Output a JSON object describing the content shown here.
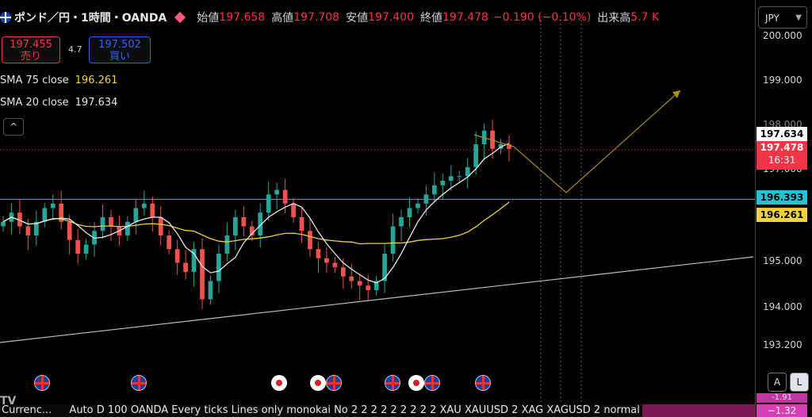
{
  "header": {
    "symbol": "ポンド／円・1時間・OANDA",
    "open_label": "始値",
    "open_value": "197.658",
    "high_label": "高値",
    "high_value": "197.708",
    "low_label": "安値",
    "low_value": "197.400",
    "close_label": "終値",
    "close_value": "197.478",
    "change": "−0.190 (−0.10%)",
    "volume_label": "出来高",
    "volume_value": "5.7 K"
  },
  "trade": {
    "sell_price": "197.455",
    "sell_label": "売り",
    "spread": "4.7",
    "buy_price": "197.502",
    "buy_label": "買い"
  },
  "indicators": {
    "sma75_label": "SMA 75 close",
    "sma75_value": "196.261",
    "sma20_label": "SMA 20 close",
    "sma20_value": "197.634",
    "collapse_glyph": "^"
  },
  "price_axis": {
    "currency": "JPY",
    "ticks": [
      "200.000",
      "199.000",
      "197.000",
      "195.000",
      "194.000",
      "193.200"
    ],
    "tick_198_partial": "198.000",
    "tag_sma20": "197.634",
    "tag_last": "197.478",
    "tag_countdown": "16:31",
    "tag_hline": "196.393",
    "tag_sma75": "196.261",
    "tag_bottom_partial": "-1.91",
    "tag_bottom": "−1.32"
  },
  "controls": {
    "auto_a": "A",
    "log_l": "L"
  },
  "bottom_bar": {
    "left": "Currenc...",
    "right": "Auto D 100 OANDA Every ticks Lines only monokai No 2 2 2 2 2 2 2 2 2 XAU XAUUSD 2 XAG XAGUSD 2 normal c"
  },
  "colors": {
    "up": "#26a69a",
    "down": "#ef5350",
    "sma75": "#f0d23c",
    "sma20": "#e6e6e6",
    "hline": "#22c3d6",
    "trend": "#bdbdbd",
    "forecast": "#b08b22",
    "last_price": "#f23645"
  },
  "chart_data": {
    "type": "candlestick",
    "symbol": "GBPJPY",
    "timeframe": "1時間",
    "ylim": [
      193.0,
      200.2
    ],
    "close_approx": [
      195.9,
      196.1,
      195.8,
      195.6,
      195.9,
      196.2,
      196.3,
      195.9,
      195.5,
      195.2,
      195.4,
      195.7,
      196.0,
      195.8,
      195.6,
      195.9,
      196.2,
      196.3,
      196.0,
      195.6,
      195.3,
      195.0,
      194.8,
      195.3,
      194.2,
      194.6,
      195.2,
      195.6,
      196.0,
      195.8,
      195.6,
      196.1,
      196.5,
      196.6,
      196.3,
      196.0,
      195.7,
      195.3,
      195.1,
      195.0,
      194.9,
      194.7,
      194.6,
      194.5,
      194.4,
      194.6,
      195.2,
      195.8,
      196.0,
      196.2,
      196.3,
      196.5,
      196.7,
      196.8,
      196.9,
      196.9,
      197.1,
      197.6,
      197.9,
      197.5,
      197.6,
      197.5
    ]
  }
}
